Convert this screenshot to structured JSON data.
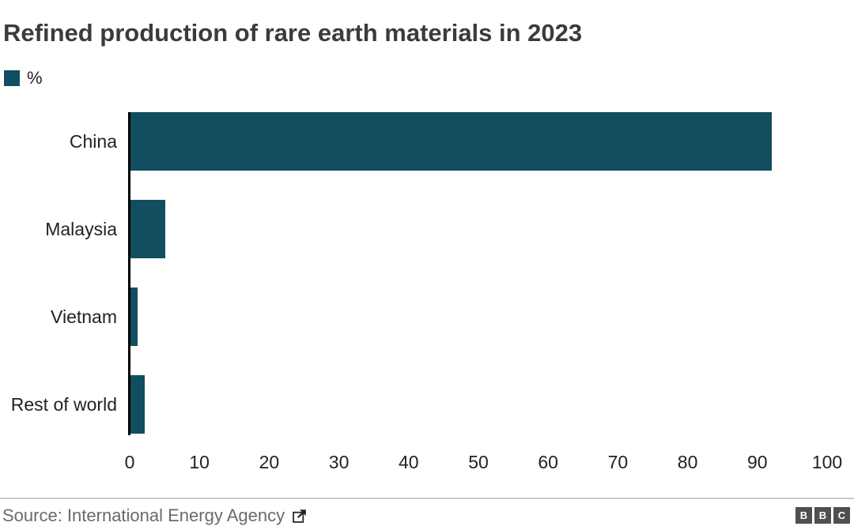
{
  "title": "Refined production of rare earth materials in 2023",
  "legend": {
    "label": "%",
    "swatch_color": "#114e5f"
  },
  "chart_data": {
    "type": "bar",
    "orientation": "horizontal",
    "title": "Refined production of rare earth materials in 2023",
    "unit": "%",
    "categories": [
      "China",
      "Malaysia",
      "Vietnam",
      "Rest of world"
    ],
    "values": [
      92,
      5,
      1,
      2
    ],
    "xlim": [
      0,
      100
    ],
    "xticks": [
      0,
      10,
      20,
      30,
      40,
      50,
      60,
      70,
      80,
      90,
      100
    ],
    "grid": false,
    "legend_position": "top-left",
    "bar_color": "#114e5f",
    "axis_color": "#000000"
  },
  "footer": {
    "source_label": "Source: International Energy Agency",
    "external_link_icon": "box-with-arrow-up-right",
    "logo_letters": [
      "B",
      "B",
      "C"
    ]
  },
  "colors": {
    "background": "#ffffff",
    "title_text": "#3b3b3b",
    "label_text": "#222222",
    "source_text": "#6a6a6a",
    "divider": "#cbcbcb",
    "logo_block": "#4f4f4f"
  }
}
